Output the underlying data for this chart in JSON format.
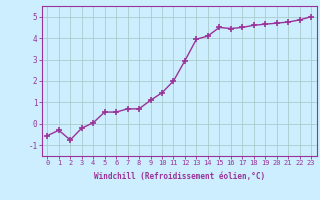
{
  "x": [
    0,
    1,
    2,
    3,
    4,
    5,
    6,
    7,
    8,
    9,
    10,
    11,
    12,
    13,
    14,
    15,
    16,
    17,
    18,
    19,
    20,
    21,
    22,
    23
  ],
  "y": [
    -0.55,
    -0.3,
    -0.75,
    -0.2,
    0.05,
    0.55,
    0.55,
    0.7,
    0.7,
    1.1,
    1.45,
    2.0,
    2.95,
    3.95,
    4.1,
    4.5,
    4.45,
    4.5,
    4.6,
    4.65,
    4.7,
    4.75,
    4.85,
    5.0
  ],
  "line_color": "#993399",
  "marker": "+",
  "bg_color": "#cceeff",
  "grid_color": "#aacccc",
  "xlabel": "Windchill (Refroidissement éolien,°C)",
  "xlim": [
    -0.5,
    23.5
  ],
  "ylim": [
    -1.5,
    5.5
  ],
  "yticks": [
    -1,
    0,
    1,
    2,
    3,
    4,
    5
  ],
  "xticks": [
    0,
    1,
    2,
    3,
    4,
    5,
    6,
    7,
    8,
    9,
    10,
    11,
    12,
    13,
    14,
    15,
    16,
    17,
    18,
    19,
    20,
    21,
    22,
    23
  ],
  "tick_fontsize": 5.0,
  "xlabel_fontsize": 5.5,
  "line_width": 1.0,
  "marker_size": 4,
  "marker_edge_width": 1.2
}
